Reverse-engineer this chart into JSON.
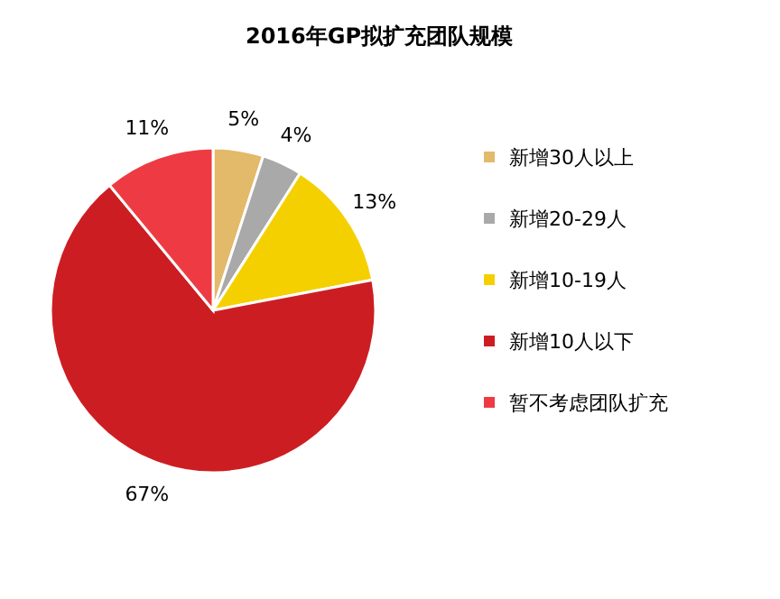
{
  "chart_data": {
    "type": "pie",
    "title": "2016年GP拟扩充团队规模",
    "categories": [
      "新增30人以上",
      "新增20-29人",
      "新增10-19人",
      "新增10人以下",
      "暂不考虑团队扩充"
    ],
    "values": [
      5,
      4,
      13,
      67,
      11
    ],
    "colors": [
      "#e3b96a",
      "#a9a9a9",
      "#f5d000",
      "#cc1e22",
      "#ee3b43"
    ],
    "value_labels": [
      "5%",
      "4%",
      "13%",
      "67%",
      "11%"
    ],
    "legend": "right"
  }
}
